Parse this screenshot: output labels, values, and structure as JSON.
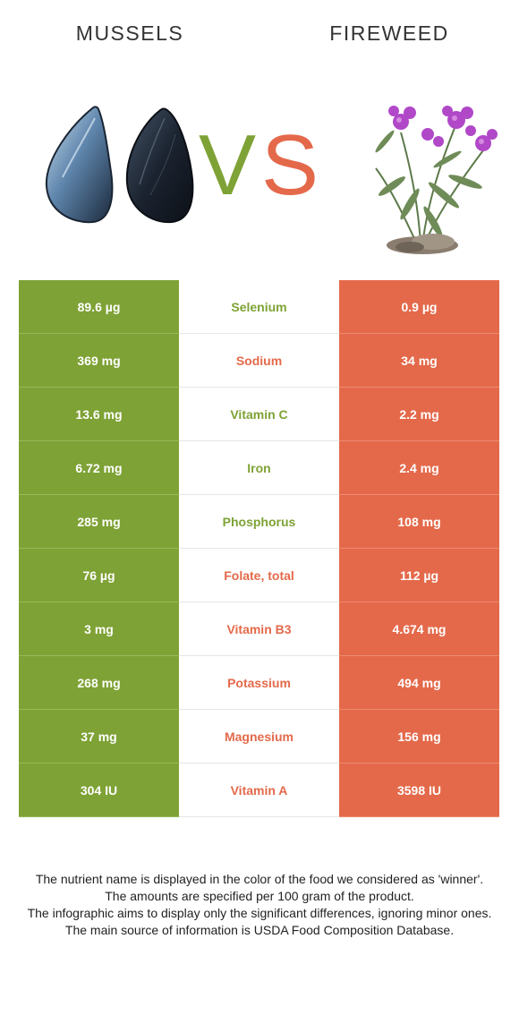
{
  "header": {
    "left_food": "MUSSELS",
    "right_food": "FIREWEED",
    "vs_v": "V",
    "vs_s": "S"
  },
  "colors": {
    "left_accent": "#7ea235",
    "right_accent": "#e4694a"
  },
  "images": {
    "left": "mussel-shells-illustration",
    "right": "fireweed-plant-illustration"
  },
  "rows": [
    {
      "nutrient": "Selenium",
      "left": "89.6 µg",
      "right": "0.9 µg",
      "winner": "left"
    },
    {
      "nutrient": "Sodium",
      "left": "369 mg",
      "right": "34 mg",
      "winner": "right"
    },
    {
      "nutrient": "Vitamin C",
      "left": "13.6 mg",
      "right": "2.2 mg",
      "winner": "left"
    },
    {
      "nutrient": "Iron",
      "left": "6.72 mg",
      "right": "2.4 mg",
      "winner": "left"
    },
    {
      "nutrient": "Phosphorus",
      "left": "285 mg",
      "right": "108 mg",
      "winner": "left"
    },
    {
      "nutrient": "Folate, total",
      "left": "76 µg",
      "right": "112 µg",
      "winner": "right"
    },
    {
      "nutrient": "Vitamin B3",
      "left": "3 mg",
      "right": "4.674 mg",
      "winner": "right"
    },
    {
      "nutrient": "Potassium",
      "left": "268 mg",
      "right": "494 mg",
      "winner": "right"
    },
    {
      "nutrient": "Magnesium",
      "left": "37 mg",
      "right": "156 mg",
      "winner": "right"
    },
    {
      "nutrient": "Vitamin A",
      "left": "304 IU",
      "right": "3598 IU",
      "winner": "right"
    }
  ],
  "footnote": [
    "The nutrient name is displayed in the color of the food we considered as 'winner'.",
    "The amounts are specified per 100 gram of the product.",
    "The infographic aims to display only the significant differences, ignoring minor ones.",
    "The main source of information is USDA Food Composition Database."
  ]
}
